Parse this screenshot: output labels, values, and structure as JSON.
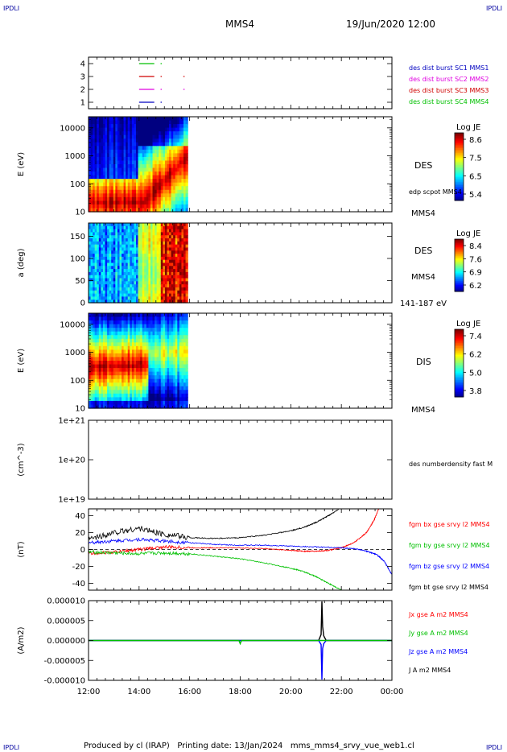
{
  "header": {
    "corner_tl": "IPDLI",
    "corner_tr": "IPDLI",
    "corner_bl": "IPDLI",
    "corner_br": "IPDLI",
    "spacecraft": "MMS4",
    "date": "19/Jun/2020 12:00"
  },
  "footer": {
    "text": "Produced by cl (IRAP)   Printing date: 13/Jan/2024   mms_mms4_srvy_vue_web1.cl"
  },
  "colors": {
    "bx": "#ff0000",
    "by": "#00c000",
    "bz": "#0000ff",
    "bt": "#000000",
    "sc1": "#0000c0",
    "sc2": "#e000e0",
    "sc3": "#d00000",
    "sc4": "#00c000"
  },
  "chart_data": [
    {
      "type": "line",
      "panel": "burst-availability",
      "yticks": [
        "4",
        "3",
        "2",
        "1"
      ],
      "ylim": [
        0.5,
        4.5
      ],
      "legend": [
        {
          "label": "des dist burst SC1 MMS1",
          "color": "#0000c0"
        },
        {
          "label": "des dist burst SC2 MMS2",
          "color": "#e000e0"
        },
        {
          "label": "des dist burst SC3 MMS3",
          "color": "#d00000"
        },
        {
          "label": "des dist burst SC4 MMS4",
          "color": "#00c000"
        }
      ],
      "segments": [
        {
          "level": 4,
          "color": "#00c000",
          "x": [
            [
              14.0,
              14.6
            ],
            [
              14.85,
              14.9
            ]
          ]
        },
        {
          "level": 3,
          "color": "#d00000",
          "x": [
            [
              14.0,
              14.6
            ],
            [
              14.85,
              14.9
            ],
            [
              15.75,
              15.8
            ]
          ]
        },
        {
          "level": 2,
          "color": "#e000e0",
          "x": [
            [
              14.0,
              14.6
            ],
            [
              14.85,
              14.9
            ],
            [
              15.75,
              15.8
            ]
          ]
        },
        {
          "level": 1,
          "color": "#0000c0",
          "x": [
            [
              14.0,
              14.6
            ],
            [
              14.85,
              14.9
            ]
          ]
        }
      ]
    },
    {
      "type": "heatmap",
      "panel": "des-energy",
      "ylabel": "E (eV)",
      "yticks": [
        "10000",
        "1000",
        "100",
        "10"
      ],
      "ylog": true,
      "ylim": [
        10,
        25000
      ],
      "label": "DES",
      "sublabel": "edp scpot MMS4",
      "sublabel2": "MMS4",
      "colorbar": {
        "title": "Log JE",
        "ticks": [
          "8.6",
          "7.5",
          "6.5",
          "5.4"
        ],
        "range": [
          5.4,
          8.6
        ]
      },
      "data_x_range": [
        12.0,
        15.92
      ]
    },
    {
      "type": "heatmap",
      "panel": "des-pitch",
      "ylabel": "a (deg)",
      "yticks": [
        "150",
        "100",
        "50",
        "0"
      ],
      "ylim": [
        0,
        180
      ],
      "label": "DES",
      "sublabel": "MMS4",
      "sublabel2": "141-187 eV",
      "colorbar": {
        "title": "Log JE",
        "ticks": [
          "8.4",
          "7.6",
          "6.9",
          "6.2"
        ],
        "range": [
          6.2,
          8.4
        ]
      },
      "data_x_range": [
        12.0,
        15.92
      ]
    },
    {
      "type": "heatmap",
      "panel": "dis-energy",
      "ylabel": "E (eV)",
      "yticks": [
        "10000",
        "1000",
        "100",
        "10"
      ],
      "ylog": true,
      "ylim": [
        10,
        25000
      ],
      "label": "DIS",
      "sublabel": "MMS4",
      "colorbar": {
        "title": "Log JE",
        "ticks": [
          "7.4",
          "6.2",
          "5.0",
          "3.8"
        ],
        "range": [
          3.8,
          7.4
        ]
      },
      "data_x_range": [
        12.0,
        15.92
      ]
    },
    {
      "type": "line",
      "panel": "density",
      "ylabel": "(cm^-3)",
      "yticks": [
        "1e+21",
        "1e+20",
        "1e+19"
      ],
      "ylog": true,
      "legend": [
        {
          "label": "des numberdensity fast M",
          "color": "#000000"
        }
      ]
    },
    {
      "type": "line",
      "panel": "magnetic-field",
      "ylabel": "(nT)",
      "yticks": [
        "40",
        "20",
        "0",
        "-20",
        "-40"
      ],
      "ylim": [
        -48,
        48
      ],
      "legend": [
        {
          "label": "fgm bx gse srvy l2 MMS4",
          "color": "#ff0000"
        },
        {
          "label": "fgm by gse srvy l2 MMS4",
          "color": "#00c000"
        },
        {
          "label": "fgm bz gse srvy l2 MMS4",
          "color": "#0000ff"
        },
        {
          "label": "fgm bt gse srvy l2 MMS4",
          "color": "#000000"
        }
      ],
      "series": [
        {
          "name": "fgm bx gse srvy l2 MMS4",
          "x": [
            12.0,
            13.0,
            14.0,
            15.0,
            16.0,
            17.0,
            18.0,
            19.0,
            20.0,
            20.5,
            21.0,
            21.5,
            22.0,
            22.5,
            23.0,
            23.3,
            23.5
          ],
          "y": [
            -5,
            -3,
            0,
            3,
            2,
            2,
            2,
            1,
            -1,
            -2,
            -2,
            -1,
            2,
            8,
            20,
            35,
            50
          ]
        },
        {
          "name": "fgm by gse srvy l2 MMS4",
          "x": [
            12.0,
            13.0,
            14.0,
            15.0,
            16.0,
            17.0,
            18.0,
            19.0,
            20.0,
            20.5,
            21.0,
            21.5,
            22.0
          ],
          "y": [
            -3,
            -4,
            -5,
            -4,
            -5,
            -8,
            -11,
            -16,
            -22,
            -26,
            -32,
            -40,
            -48
          ]
        },
        {
          "name": "fgm bz gse srvy l2 MMS4",
          "x": [
            12.0,
            13.0,
            14.0,
            15.0,
            16.0,
            17.0,
            18.0,
            19.0,
            20.0,
            21.0,
            22.0,
            22.5,
            23.0,
            23.4,
            23.7,
            24.0
          ],
          "y": [
            8,
            10,
            12,
            10,
            8,
            6,
            5,
            5,
            4,
            3,
            2,
            1,
            -2,
            -6,
            -14,
            -30
          ]
        },
        {
          "name": "fgm bt gse srvy l2 MMS4",
          "x": [
            12.0,
            13.0,
            14.0,
            15.0,
            16.0,
            17.0,
            18.0,
            19.0,
            20.0,
            20.5,
            21.0,
            21.5,
            22.0
          ],
          "y": [
            12,
            20,
            25,
            18,
            14,
            13,
            14,
            17,
            22,
            26,
            32,
            40,
            50
          ]
        }
      ]
    },
    {
      "type": "line",
      "panel": "current-density",
      "ylabel": "(A/m2)",
      "yticks": [
        "0.000010",
        "0.000005",
        "0.000000",
        "-0.000005",
        "-0.000010"
      ],
      "ylim": [
        -1e-05,
        1e-05
      ],
      "xticks": [
        "12:00",
        "14:00",
        "16:00",
        "18:00",
        "20:00",
        "22:00",
        "00:00"
      ],
      "legend": [
        {
          "label": "Jx gse A m2 MMS4",
          "color": "#ff0000"
        },
        {
          "label": "Jy gse A m2 MMS4",
          "color": "#00c000"
        },
        {
          "label": "Jz gse A m2 MMS4",
          "color": "#0000ff"
        },
        {
          "label": "J A m2 MMS4",
          "color": "#000000"
        }
      ],
      "series": [
        {
          "name": "J A m2 MMS4",
          "x": [
            12.0,
            21.1,
            21.2,
            21.23,
            21.26,
            21.3,
            21.4,
            24.0
          ],
          "y": [
            0.0,
            0.0,
            1.5e-06,
            9.8e-06,
            3.5e-06,
            1.2e-06,
            0.0,
            0.0
          ]
        },
        {
          "name": "Jz gse A m2 MMS4",
          "x": [
            12.0,
            21.1,
            21.2,
            21.23,
            21.26,
            21.3,
            21.4,
            24.0
          ],
          "y": [
            0.0,
            0.0,
            -1e-06,
            -9.8e-06,
            -2e-06,
            -8e-07,
            0.0,
            0.0
          ]
        },
        {
          "name": "Jy gse A m2 MMS4",
          "x": [
            12.0,
            17.95,
            18.0,
            18.05,
            24.0
          ],
          "y": [
            0.0,
            0.0,
            -8e-07,
            0.0,
            0.0
          ]
        }
      ]
    }
  ]
}
